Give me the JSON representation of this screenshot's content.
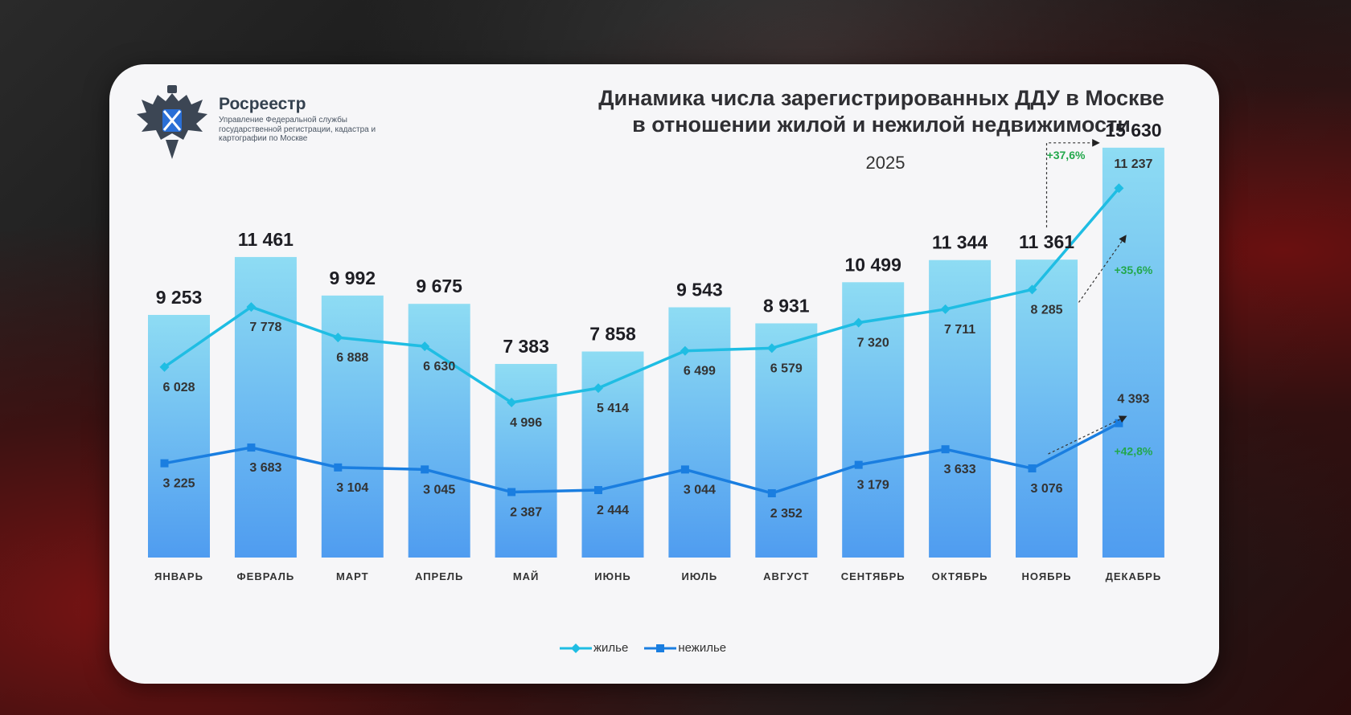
{
  "org": {
    "name": "Росреестр",
    "description": "Управление Федеральной службы государственной регистрации, кадастра и картографии по Москве"
  },
  "header": {
    "title_line1": "Динамика числа зарегистрированных ДДУ в Москве",
    "title_line2": "в отношении жилой и нежилой недвижимости",
    "year": "2025"
  },
  "chart_data": {
    "type": "bar",
    "categories": [
      "ЯНВАРЬ",
      "ФЕВРАЛЬ",
      "МАРТ",
      "АПРЕЛЬ",
      "МАЙ",
      "ИЮНЬ",
      "ИЮЛЬ",
      "АВГУСТ",
      "СЕНТЯБРЬ",
      "ОКТЯБРЬ",
      "НОЯБРЬ",
      "ДЕКАБРЬ"
    ],
    "totals": [
      9253,
      11461,
      9992,
      9675,
      7383,
      7858,
      9543,
      8931,
      10499,
      11344,
      11361,
      15630
    ],
    "series": [
      {
        "name": "жилье",
        "type": "line",
        "color": "#1fbde3",
        "marker": "diamond",
        "values": [
          6028,
          7778,
          6888,
          6630,
          4996,
          5414,
          6499,
          6579,
          7320,
          7711,
          8285,
          11237
        ]
      },
      {
        "name": "нежилье",
        "type": "line",
        "color": "#1a7ee0",
        "marker": "square",
        "values": [
          3225,
          3683,
          3104,
          3045,
          2387,
          2444,
          3044,
          2352,
          3179,
          3633,
          3076,
          4393
        ]
      }
    ],
    "annotations": {
      "total_growth": "+37,6%",
      "residential_growth": "+35,6%",
      "nonresidential_growth": "+42,8%"
    },
    "colors": {
      "bar_top": "#8edcf3",
      "bar_bottom": "#4f9cf0",
      "growth_text": "#22a84b"
    },
    "legend_position": "bottom-center"
  }
}
